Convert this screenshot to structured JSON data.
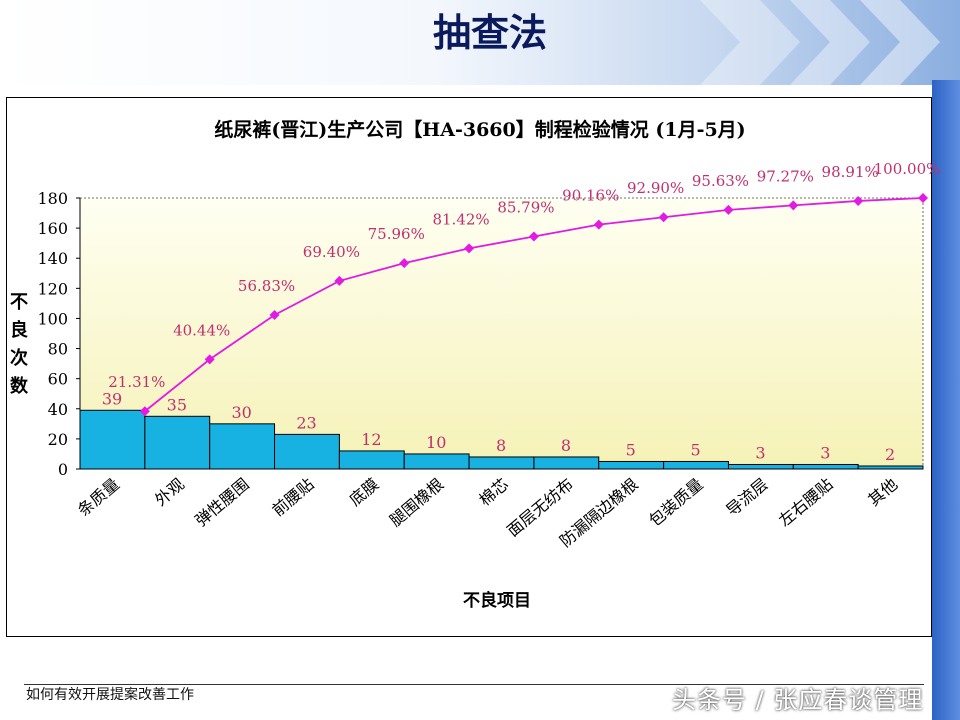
{
  "slide": {
    "title": "抽查法",
    "footer": "如何有效开展提案改善工作",
    "watermark": "头条号 / 张应春谈管理"
  },
  "colors": {
    "bar": "#18b2e2",
    "line": "#e21ae2",
    "plot_bg_top": "#fffff2",
    "plot_bg_bottom": "#f5f2b6",
    "label_red": "#c0306e"
  },
  "chart_data": {
    "type": "bar",
    "title": "纸尿裤(晋江)生产公司【HA-3660】制程检验情况 (1月-5月)",
    "xlabel": "不良项目",
    "ylabel": "不良次数",
    "ylim": [
      0,
      180
    ],
    "yticks": [
      "0",
      "20",
      "40",
      "60",
      "80",
      "100",
      "120",
      "140",
      "160",
      "180"
    ],
    "categories": [
      "条质量",
      "外观",
      "弹性腰围",
      "前腰贴",
      "底膜",
      "腿围橡根",
      "棉芯",
      "面层无纺布",
      "防漏隔边橡根",
      "包装质量",
      "导流层",
      "左右腰贴",
      "其他"
    ],
    "values": [
      39,
      35,
      30,
      23,
      12,
      10,
      8,
      8,
      5,
      5,
      3,
      3,
      2
    ],
    "value_labels": [
      "39",
      "35",
      "30",
      "23",
      "12",
      "10",
      "8",
      "8",
      "5",
      "5",
      "3",
      "3",
      "2"
    ],
    "cumulative_percent": [
      21.31,
      40.44,
      56.83,
      69.4,
      75.96,
      81.42,
      85.79,
      90.16,
      92.9,
      95.63,
      97.27,
      98.91,
      100.0
    ],
    "percent_labels": [
      "21.31%",
      "40.44%",
      "56.83%",
      "69.40%",
      "75.96%",
      "81.42%",
      "85.79%",
      "90.16%",
      "92.90%",
      "95.63%",
      "97.27%",
      "98.91%",
      "100.00%"
    ],
    "grid": false,
    "legend": "none"
  }
}
